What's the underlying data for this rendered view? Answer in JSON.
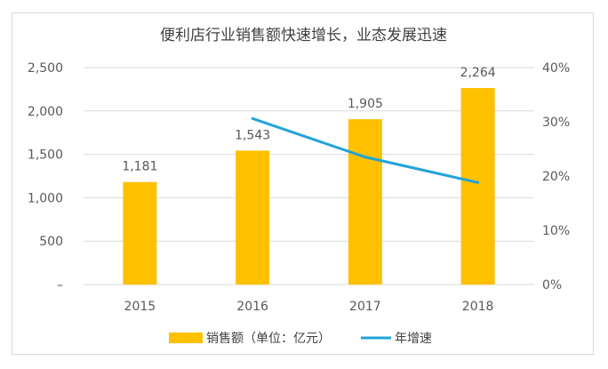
{
  "chart_data": {
    "type": "bar",
    "title": "便利店行业销售额快速增长，业态发展迅速",
    "categories": [
      "2015",
      "2016",
      "2017",
      "2018"
    ],
    "series": [
      {
        "name": "销售额（单位：亿元）",
        "type": "bar",
        "axis": "left",
        "color": "#FFC000",
        "values": [
          1181,
          1543,
          1905,
          2264
        ],
        "data_labels": [
          "1,181",
          "1,543",
          "1,905",
          "2,264"
        ]
      },
      {
        "name": "年增速",
        "type": "line",
        "axis": "right",
        "color": "#21A3D8",
        "values": [
          null,
          0.306,
          0.235,
          0.188
        ]
      }
    ],
    "y_left": {
      "ylim": [
        0,
        2500
      ],
      "ticks": [
        0,
        500,
        1000,
        1500,
        2000,
        2500
      ],
      "tick_labels": [
        "–",
        "500",
        "1,000",
        "1,500",
        "2,000",
        "2,500"
      ]
    },
    "y_right": {
      "ylim": [
        0,
        0.4
      ],
      "ticks": [
        0,
        0.1,
        0.2,
        0.3,
        0.4
      ],
      "tick_labels": [
        "0%",
        "10%",
        "20%",
        "30%",
        "40%"
      ]
    },
    "grid": true,
    "legend": "bottom"
  }
}
